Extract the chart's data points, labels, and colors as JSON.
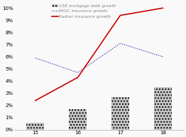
{
  "x_labels": [
    "15",
    "16",
    "17",
    "18"
  ],
  "x_values": [
    15,
    16,
    17,
    18
  ],
  "bar_values": [
    0.006,
    0.017,
    0.027,
    0.035
  ],
  "mgic_values": [
    0.059,
    0.047,
    0.071,
    0.06
  ],
  "radian_values": [
    0.024,
    0.043,
    0.094,
    0.1
  ],
  "bar_color": "#c8c8c8",
  "bar_hatch": "....",
  "mgic_color": "#1a1aaa",
  "radian_color": "#cc0000",
  "ylim": [
    0,
    0.105
  ],
  "yticks": [
    0,
    0.01,
    0.02,
    0.03,
    0.04,
    0.05,
    0.06,
    0.07,
    0.08,
    0.09,
    0.1
  ],
  "ytick_labels": [
    "0%",
    "1%",
    "2%",
    "3%",
    "4%",
    "5%",
    "6%",
    "7%",
    "8%",
    "9%",
    "10%"
  ],
  "legend_gse": "GSE mortgage debt growth",
  "legend_mgic": "MGIC insurance growth",
  "legend_radian": "Radian insurance growth",
  "background_color": "#f9f9f9",
  "legend_fontsize": 4.2,
  "tick_fontsize": 5.0,
  "mgic_linewidth": 0.8,
  "radian_linewidth": 1.2
}
